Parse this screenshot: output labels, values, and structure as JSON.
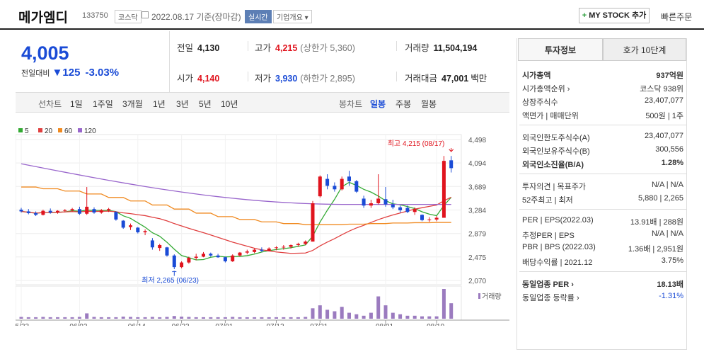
{
  "header": {
    "name": "메가엠디",
    "code": "133750",
    "market": "코스닥",
    "date": "2022.08.17 기준(장마감)",
    "realtime": "실시간",
    "company": "기업개요 ▾",
    "mystock": "MY STOCK 추가",
    "mystock_plus": "+",
    "quick": "빠른주문"
  },
  "price": {
    "current": "4,005",
    "change_label": "전일대비",
    "change_arrow": "▼",
    "change_value": "125",
    "change_pct": "-3.03%"
  },
  "info": {
    "prev_label": "전일",
    "prev": "4,130",
    "high_label": "고가",
    "high": "4,215",
    "high_limit": "(상한가 5,360)",
    "volume_label": "거래량",
    "volume": "11,504,194",
    "open_label": "시가",
    "open": "4,140",
    "low_label": "저가",
    "low": "3,930",
    "low_limit": "(하한가 2,895)",
    "amount_label": "거래대금",
    "amount": "47,001",
    "amount_unit": "백만"
  },
  "tabs": {
    "line": "선차트",
    "periods": [
      "1일",
      "1주일",
      "3개월",
      "1년",
      "3년",
      "5년",
      "10년"
    ],
    "candle": "봉차트",
    "candle_periods": [
      "일봉",
      "주봉",
      "월봉"
    ]
  },
  "chart_data": {
    "type": "candlestick",
    "legend": [
      "5",
      "20",
      "60",
      "120"
    ],
    "legend_colors": [
      "#33aa33",
      "#e04040",
      "#f08a20",
      "#9966cc"
    ],
    "y_ticks": [
      "4,498",
      "4,094",
      "3,689",
      "3,284",
      "2,879",
      "2,475",
      "2,070"
    ],
    "y_min": 2070,
    "y_max": 4498,
    "x_ticks": [
      "05/23",
      "06/02",
      "06/14",
      "06/23",
      "07/01",
      "07/12",
      "07/21",
      "08/01",
      "08/10"
    ],
    "max_label": "최고 4,215 (08/17)",
    "min_label": "최저 2,265 (06/23)",
    "volume_label": "거래량",
    "candles": [
      [
        3290,
        3320,
        3240,
        3260
      ],
      [
        3260,
        3300,
        3210,
        3230
      ],
      [
        3230,
        3260,
        3180,
        3200
      ],
      [
        3200,
        3290,
        3190,
        3270
      ],
      [
        3270,
        3310,
        3220,
        3240
      ],
      [
        3240,
        3280,
        3220,
        3270
      ],
      [
        3270,
        3300,
        3250,
        3280
      ],
      [
        3280,
        3320,
        3260,
        3300
      ],
      [
        3300,
        3340,
        3200,
        3220
      ],
      [
        3220,
        3680,
        3200,
        3340
      ],
      [
        3300,
        3330,
        3220,
        3240
      ],
      [
        3240,
        3300,
        3220,
        3280
      ],
      [
        3280,
        3320,
        3250,
        3300
      ],
      [
        3250,
        3260,
        3100,
        3120
      ],
      [
        3100,
        3110,
        2960,
        2980
      ],
      [
        2990,
        3050,
        2940,
        3020
      ],
      [
        2980,
        2990,
        2880,
        2900
      ],
      [
        2900,
        2950,
        2850,
        2920
      ],
      [
        2760,
        2800,
        2600,
        2640
      ],
      [
        2630,
        2700,
        2580,
        2680
      ],
      [
        2640,
        2650,
        2480,
        2500
      ],
      [
        2500,
        2520,
        2265,
        2300
      ],
      [
        2300,
        2400,
        2280,
        2380
      ],
      [
        2380,
        2480,
        2360,
        2460
      ],
      [
        2460,
        2530,
        2420,
        2480
      ],
      [
        2480,
        2560,
        2470,
        2530
      ],
      [
        2530,
        2550,
        2480,
        2500
      ],
      [
        2500,
        2530,
        2460,
        2470
      ],
      [
        2470,
        2480,
        2380,
        2400
      ],
      [
        2400,
        2520,
        2390,
        2500
      ],
      [
        2500,
        2560,
        2480,
        2550
      ],
      [
        2550,
        2600,
        2520,
        2570
      ],
      [
        2560,
        2620,
        2540,
        2600
      ],
      [
        2600,
        2640,
        2560,
        2580
      ],
      [
        2580,
        2640,
        2570,
        2620
      ],
      [
        2630,
        2660,
        2590,
        2640
      ],
      [
        2640,
        2680,
        2600,
        2650
      ],
      [
        2650,
        2690,
        2620,
        2680
      ],
      [
        2680,
        2720,
        2650,
        2700
      ],
      [
        2700,
        2760,
        2680,
        2740
      ],
      [
        2740,
        3440,
        2740,
        3400
      ],
      [
        3520,
        3880,
        3500,
        3860
      ],
      [
        3820,
        3900,
        3640,
        3700
      ],
      [
        3700,
        3760,
        3600,
        3640
      ],
      [
        3640,
        3860,
        3620,
        3820
      ],
      [
        3860,
        3960,
        3700,
        3780
      ],
      [
        3780,
        3800,
        3580,
        3600
      ],
      [
        3480,
        3530,
        3320,
        3360
      ],
      [
        3360,
        3460,
        3320,
        3400
      ],
      [
        3400,
        3900,
        3380,
        3480
      ],
      [
        3470,
        3680,
        3340,
        3380
      ],
      [
        3380,
        3460,
        3300,
        3330
      ],
      [
        3330,
        3360,
        3240,
        3280
      ],
      [
        3320,
        3360,
        3230,
        3250
      ],
      [
        3250,
        3330,
        3200,
        3300
      ],
      [
        3200,
        3210,
        3090,
        3110
      ],
      [
        3110,
        3160,
        3080,
        3120
      ],
      [
        3120,
        3180,
        3090,
        3150
      ],
      [
        3150,
        4215,
        3150,
        4130
      ],
      [
        4140,
        4215,
        3930,
        4005
      ]
    ],
    "volumes": [
      0.06,
      0.05,
      0.05,
      0.06,
      0.05,
      0.05,
      0.05,
      0.05,
      0.06,
      0.18,
      0.06,
      0.05,
      0.05,
      0.05,
      0.07,
      0.06,
      0.05,
      0.05,
      0.06,
      0.05,
      0.06,
      0.09,
      0.07,
      0.06,
      0.05,
      0.05,
      0.05,
      0.05,
      0.05,
      0.06,
      0.05,
      0.05,
      0.05,
      0.05,
      0.05,
      0.05,
      0.05,
      0.05,
      0.05,
      0.06,
      0.35,
      0.45,
      0.3,
      0.25,
      0.4,
      0.2,
      0.15,
      0.1,
      0.2,
      0.75,
      0.45,
      0.2,
      0.15,
      0.1,
      0.1,
      0.08,
      0.08,
      0.08,
      1.0,
      0.52
    ]
  },
  "panel": {
    "tab1": "투자정보",
    "tab2": "호가 10단계",
    "rows1": [
      {
        "k": "시가총액",
        "v": "937억원"
      },
      {
        "k": "시가총액순위 ›",
        "v": "코스닥 938위"
      },
      {
        "k": "상장주식수",
        "v": "23,407,077"
      },
      {
        "k": "액면가 | 매매단위",
        "v": "500원 | 1주"
      }
    ],
    "rows2": [
      {
        "k": "외국인한도주식수(A)",
        "v": "23,407,077"
      },
      {
        "k": "외국인보유주식수(B)",
        "v": "300,556"
      },
      {
        "k": "외국인소진율(B/A)",
        "v": "1.28%"
      }
    ],
    "rows3": [
      {
        "k": "투자의견 | 목표주가",
        "v": "N/A | N/A"
      },
      {
        "k": "52주최고 | 최저",
        "v": "5,880 | 2,265"
      }
    ],
    "rows4": [
      {
        "k": "PER | EPS(2022.03)",
        "v": "13.91배 | 288원"
      },
      {
        "k": "추정PER | EPS",
        "v": "N/A | N/A"
      },
      {
        "k": "PBR | BPS (2022.03)",
        "v": "1.36배 | 2,951원"
      },
      {
        "k": "배당수익률 | 2021.12",
        "v": "3.75%"
      }
    ],
    "rows5": [
      {
        "k": "동일업종 PER ›",
        "v": "18.13배"
      },
      {
        "k": "동일업종 등락률 ›",
        "v": "-1.31%"
      }
    ]
  }
}
